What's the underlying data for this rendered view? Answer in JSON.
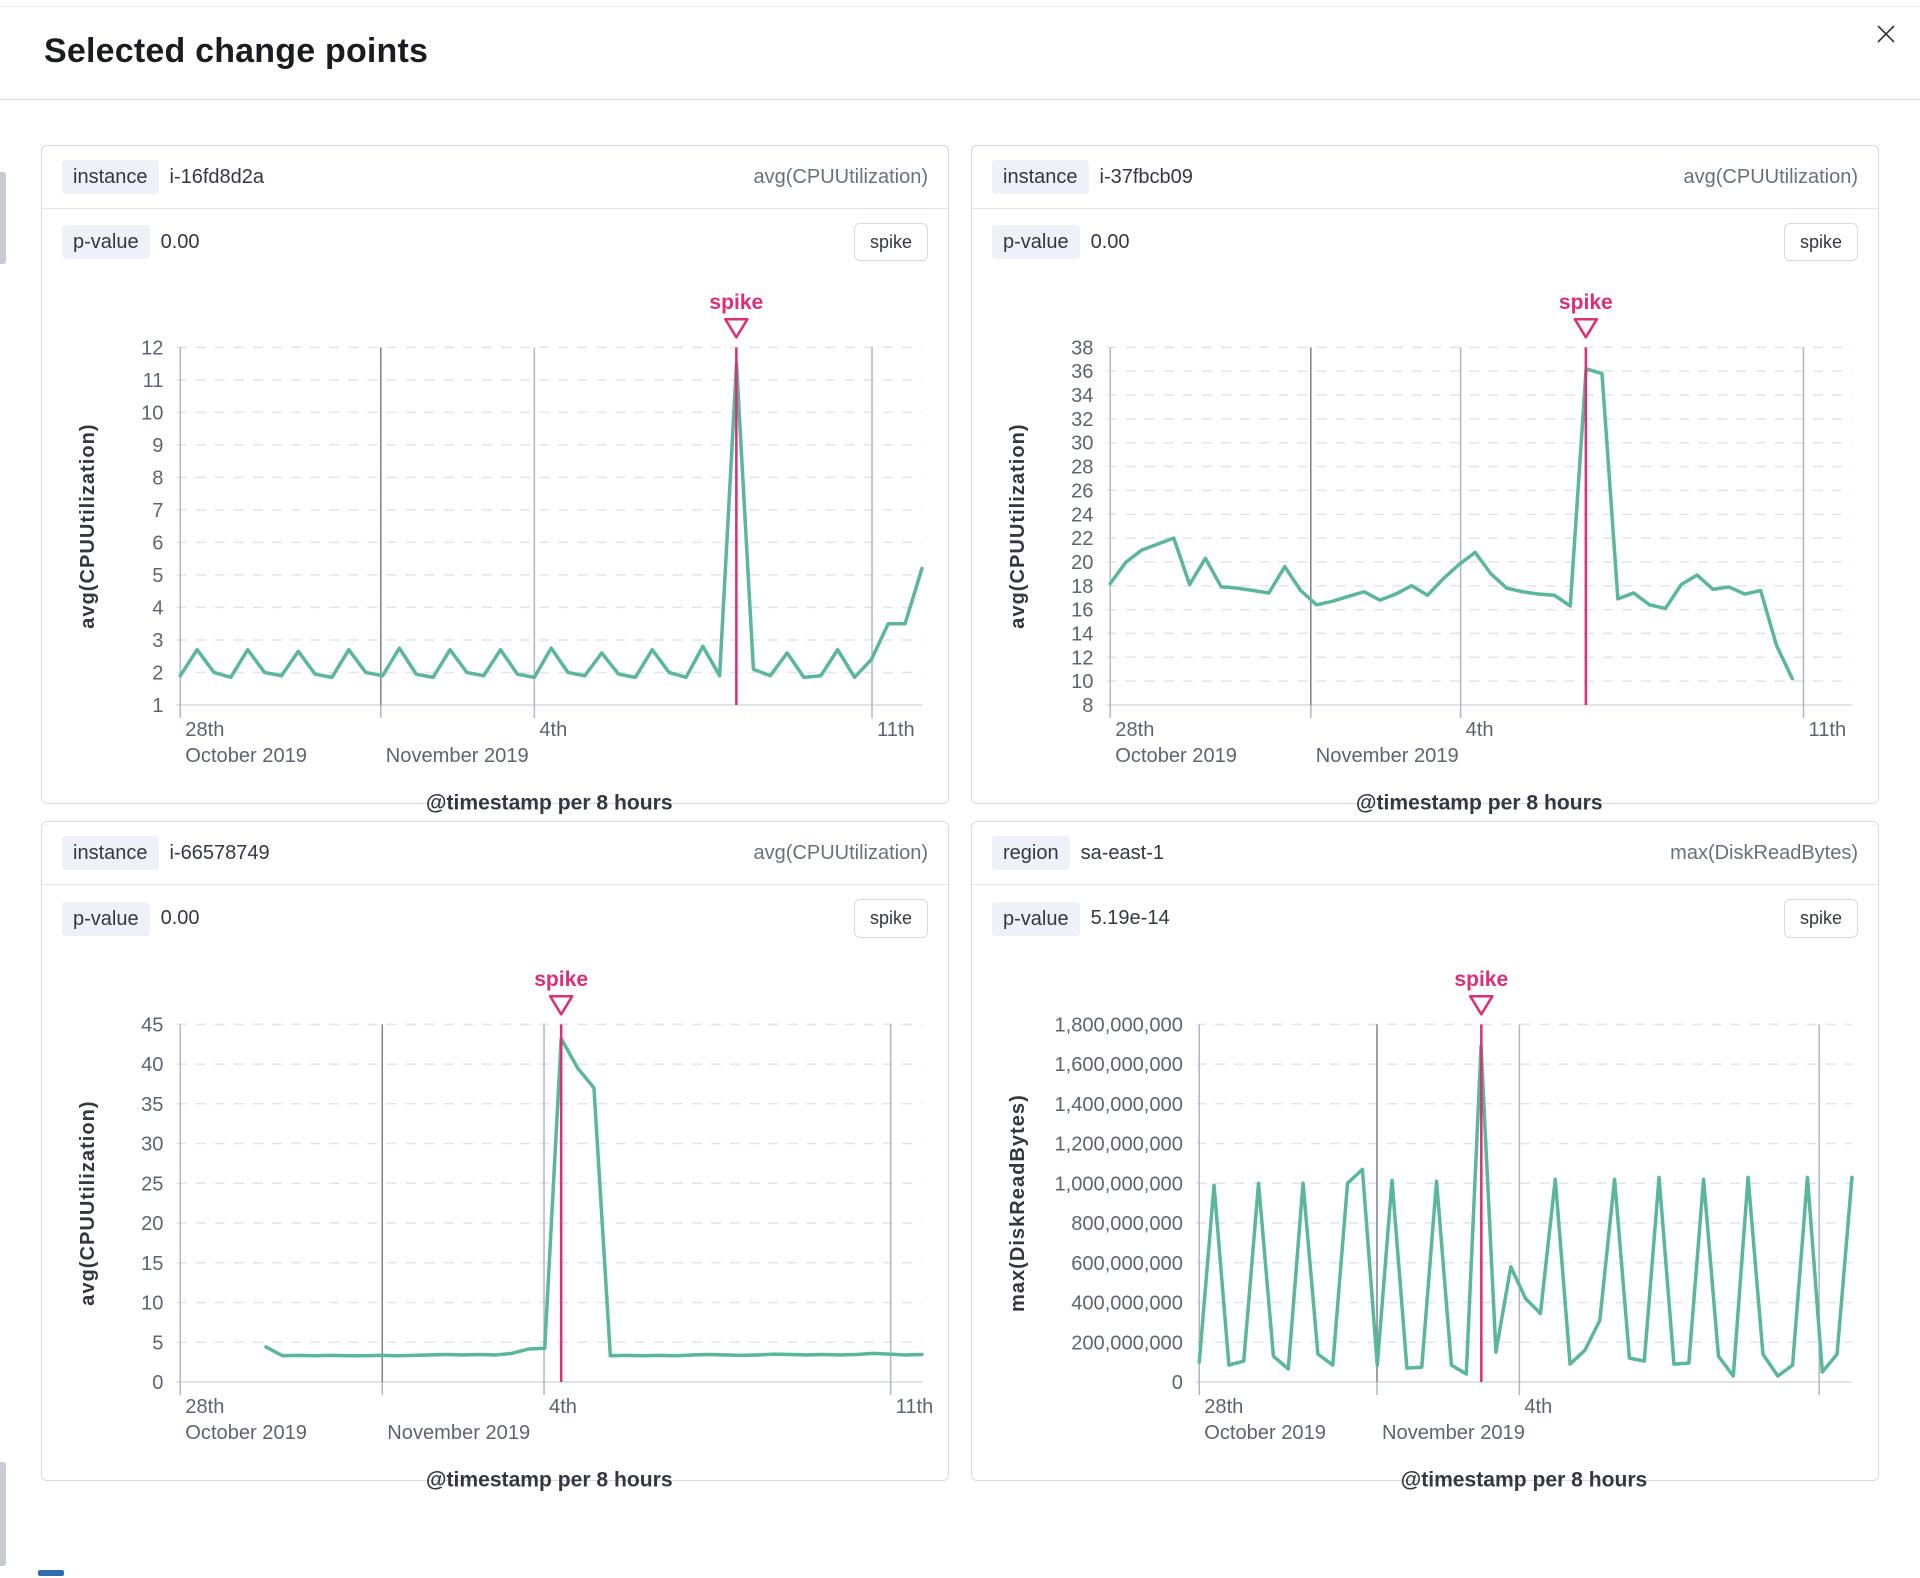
{
  "modal": {
    "title": "Selected change points"
  },
  "colors": {
    "accent_pink": "#dd2e76",
    "series_green": "#5bb79b",
    "grid_dash": "#e1e4ee",
    "axis_line": "#d6dae3",
    "vline": "#b2b6c0",
    "vline_major": "#7d828b",
    "tick_text": "#5d6471",
    "axis_title": "#343741",
    "panel_border": "#d3dae6",
    "badge_bg": "#eef1f8",
    "title_text": "#1a1c21",
    "muted_text": "#69707d"
  },
  "panels": [
    {
      "key_label": "instance",
      "key_value": "i-16fd8d2a",
      "agg": "avg(CPUUtilization)",
      "p_label": "p-value",
      "p_value": "0.00",
      "change_type": "spike"
    },
    {
      "key_label": "instance",
      "key_value": "i-37fbcb09",
      "agg": "avg(CPUUtilization)",
      "p_label": "p-value",
      "p_value": "0.00",
      "change_type": "spike"
    },
    {
      "key_label": "instance",
      "key_value": "i-66578749",
      "agg": "avg(CPUUtilization)",
      "p_label": "p-value",
      "p_value": "0.00",
      "change_type": "spike"
    },
    {
      "key_label": "region",
      "key_value": "sa-east-1",
      "agg": "max(DiskReadBytes)",
      "p_label": "p-value",
      "p_value": "5.19e-14",
      "change_type": "spike"
    }
  ],
  "chart_data": [
    {
      "type": "line",
      "xlabel": "@timestamp per 8 hours",
      "ylabel": "avg(CPUUtilization)",
      "y": {
        "min": 1,
        "max": 12,
        "step": 1,
        "format": "plain"
      },
      "x_ticks": [
        {
          "f": 0.005,
          "top": "28th",
          "bottom": "October 2019"
        },
        {
          "f": 0.274,
          "top": "",
          "bottom": "November 2019"
        },
        {
          "f": 0.48,
          "top": "4th",
          "bottom": ""
        },
        {
          "f": 0.933,
          "top": "11th",
          "bottom": ""
        }
      ],
      "annotation": {
        "label": "spike",
        "f": 0.751
      },
      "series": {
        "x_start": 0.005,
        "x_end": 1.0,
        "values": [
          1.9,
          2.7,
          2.0,
          1.85,
          2.7,
          2.0,
          1.9,
          2.65,
          1.95,
          1.85,
          2.7,
          2.0,
          1.9,
          2.75,
          1.95,
          1.85,
          2.7,
          2.0,
          1.9,
          2.7,
          1.95,
          1.85,
          2.75,
          2.0,
          1.9,
          2.6,
          1.95,
          1.85,
          2.7,
          2.0,
          1.85,
          2.8,
          1.9,
          11.5,
          2.1,
          1.9,
          2.6,
          1.85,
          1.9,
          2.7,
          1.85,
          2.4,
          3.5,
          3.5,
          5.2
        ]
      }
    },
    {
      "type": "line",
      "xlabel": "@timestamp per 8 hours",
      "ylabel": "avg(CPUUtilization)",
      "y": {
        "min": 8,
        "max": 38,
        "step": 2,
        "format": "plain"
      },
      "x_ticks": [
        {
          "f": 0.005,
          "top": "28th",
          "bottom": "October 2019"
        },
        {
          "f": 0.274,
          "top": "",
          "bottom": "November 2019"
        },
        {
          "f": 0.475,
          "top": "4th",
          "bottom": ""
        },
        {
          "f": 0.935,
          "top": "11th",
          "bottom": ""
        }
      ],
      "annotation": {
        "label": "spike",
        "f": 0.643
      },
      "series": {
        "x_start": 0.005,
        "x_end": 0.92,
        "values": [
          18.2,
          20.0,
          21.0,
          21.5,
          22.0,
          18.1,
          20.3,
          17.9,
          17.8,
          17.6,
          17.4,
          19.6,
          17.6,
          16.4,
          16.7,
          17.1,
          17.5,
          16.8,
          17.3,
          18.0,
          17.2,
          18.6,
          19.8,
          20.8,
          19.0,
          17.8,
          17.5,
          17.3,
          17.2,
          16.3,
          36.2,
          35.8,
          16.9,
          17.4,
          16.4,
          16.1,
          18.1,
          18.9,
          17.7,
          17.9,
          17.3,
          17.6,
          13.0,
          10.2
        ]
      }
    },
    {
      "type": "line",
      "xlabel": "@timestamp per 8 hours",
      "ylabel": "avg(CPUUtilization)",
      "y": {
        "min": 0,
        "max": 45,
        "step": 5,
        "format": "plain"
      },
      "x_ticks": [
        {
          "f": 0.005,
          "top": "28th",
          "bottom": "October 2019"
        },
        {
          "f": 0.276,
          "top": "",
          "bottom": "November 2019"
        },
        {
          "f": 0.493,
          "top": "4th",
          "bottom": ""
        },
        {
          "f": 0.958,
          "top": "11th",
          "bottom": ""
        }
      ],
      "annotation": {
        "label": "spike",
        "f": 0.516
      },
      "series": {
        "x_start": 0.12,
        "x_end": 1.0,
        "values": [
          4.4,
          3.3,
          3.35,
          3.3,
          3.35,
          3.3,
          3.3,
          3.35,
          3.3,
          3.35,
          3.4,
          3.45,
          3.4,
          3.45,
          3.4,
          3.6,
          4.15,
          4.25,
          43.2,
          39.5,
          37.0,
          3.3,
          3.35,
          3.3,
          3.35,
          3.3,
          3.4,
          3.45,
          3.4,
          3.35,
          3.4,
          3.5,
          3.45,
          3.4,
          3.45,
          3.4,
          3.45,
          3.6,
          3.5,
          3.4,
          3.45
        ]
      }
    },
    {
      "type": "line",
      "xlabel": "@timestamp per 8 hours",
      "ylabel": "max(DiskReadBytes)",
      "y": {
        "min": 0,
        "max": 1800000000,
        "step": 200000000,
        "format": "comma"
      },
      "x_ticks": [
        {
          "f": 0.005,
          "top": "28th",
          "bottom": "October 2019"
        },
        {
          "f": 0.276,
          "top": "",
          "bottom": "November 2019"
        },
        {
          "f": 0.493,
          "top": "4th",
          "bottom": ""
        },
        {
          "f": 0.95,
          "top": "",
          "bottom": ""
        }
      ],
      "annotation": {
        "label": "spike",
        "f": 0.435
      },
      "series": {
        "x_start": 0.005,
        "x_end": 1.0,
        "values": [
          100000000,
          990000000,
          85000000,
          105000000,
          1000000000,
          130000000,
          65000000,
          1000000000,
          140000000,
          85000000,
          1000000000,
          1070000000,
          85000000,
          1015000000,
          70000000,
          75000000,
          1010000000,
          85000000,
          40000000,
          1690000000,
          150000000,
          580000000,
          420000000,
          345000000,
          1020000000,
          90000000,
          160000000,
          310000000,
          1020000000,
          120000000,
          105000000,
          1030000000,
          90000000,
          95000000,
          1020000000,
          130000000,
          30000000,
          1030000000,
          140000000,
          30000000,
          85000000,
          1030000000,
          50000000,
          140000000,
          1030000000
        ]
      }
    }
  ]
}
